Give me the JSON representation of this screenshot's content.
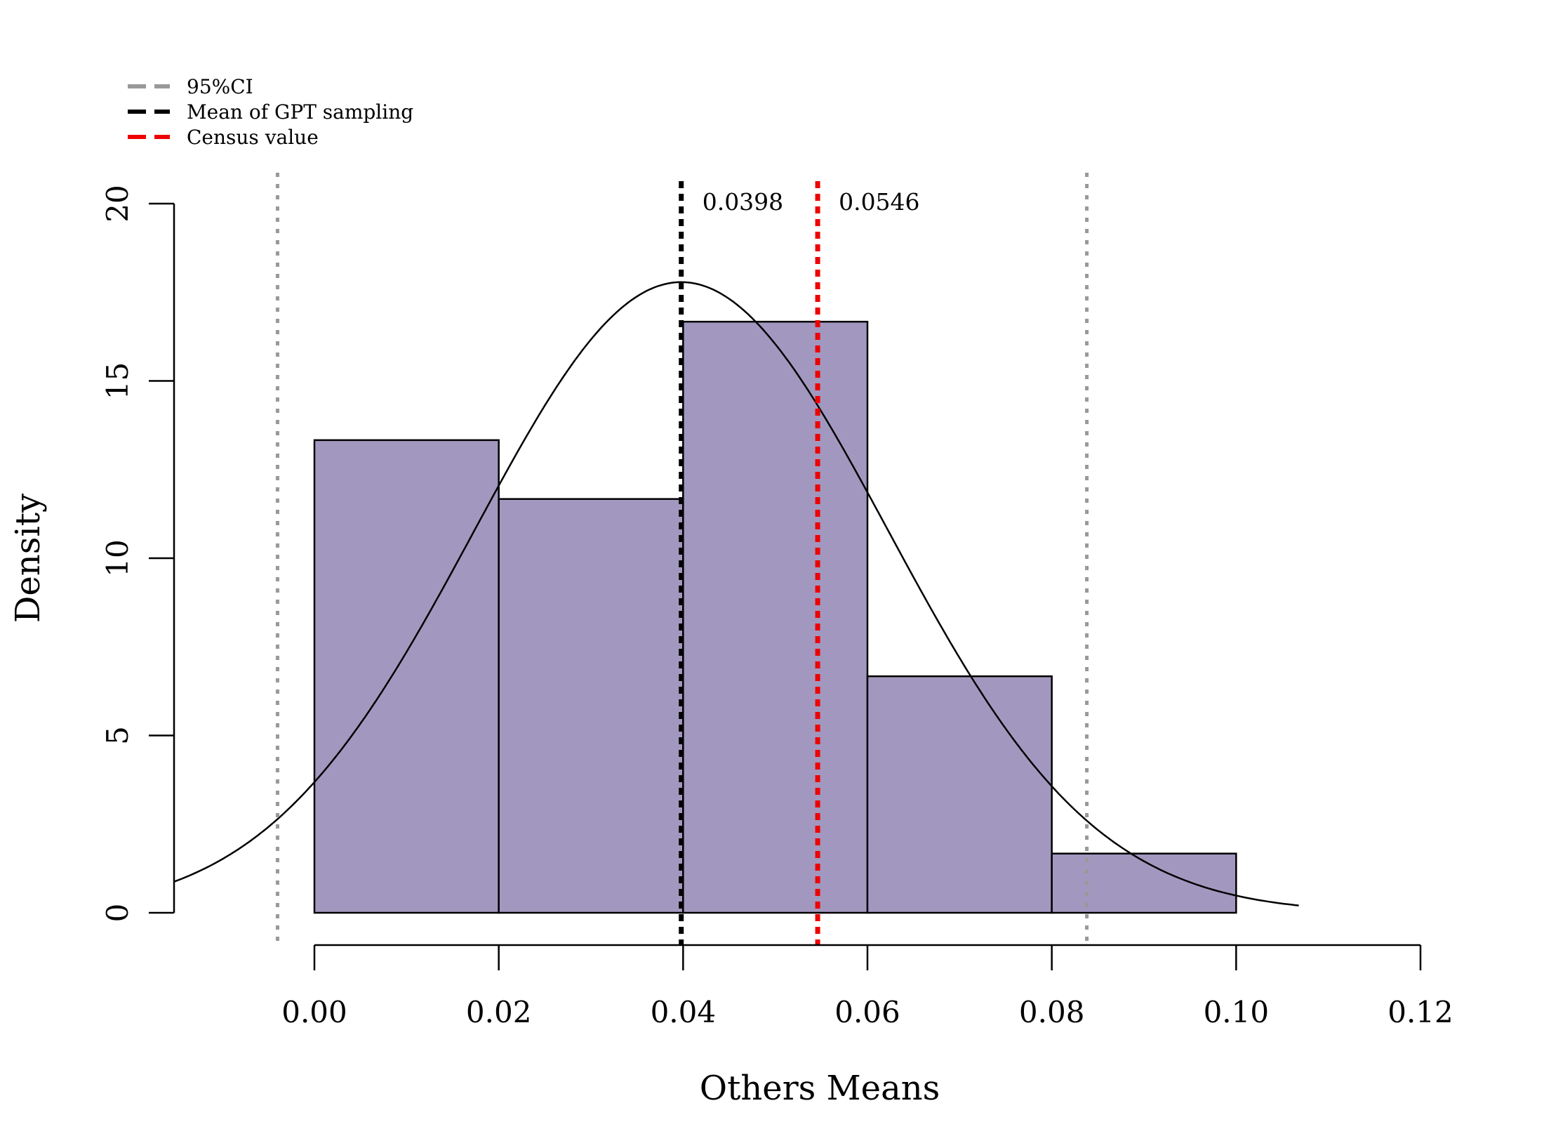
{
  "colors": {
    "bar_fill": "#a298bf",
    "bar_stroke": "#000000",
    "ci_line": "#999999",
    "mean_line": "#000000",
    "census_line": "#ee0000",
    "curve": "#000000"
  },
  "legend": {
    "placement": "top-left",
    "items": [
      {
        "label": "95%CI",
        "color": "#999999"
      },
      {
        "label": "Mean of GPT sampling",
        "color": "#000000"
      },
      {
        "label": "Census value",
        "color": "#ee0000"
      }
    ]
  },
  "chart_data": {
    "type": "bar",
    "title": "",
    "xlabel": "Others Means",
    "ylabel": "Density",
    "grid": false,
    "xlim": [
      -0.0152,
      0.12
    ],
    "ylim": [
      0,
      20
    ],
    "x_ticks": [
      {
        "value": 0.0,
        "label": "0.00"
      },
      {
        "value": 0.02,
        "label": "0.02"
      },
      {
        "value": 0.04,
        "label": "0.04"
      },
      {
        "value": 0.06,
        "label": "0.06"
      },
      {
        "value": 0.08,
        "label": "0.08"
      },
      {
        "value": 0.1,
        "label": "0.10"
      },
      {
        "value": 0.12,
        "label": "0.12"
      }
    ],
    "y_ticks": [
      {
        "value": 0,
        "label": "0"
      },
      {
        "value": 5,
        "label": "5"
      },
      {
        "value": 10,
        "label": "10"
      },
      {
        "value": 15,
        "label": "15"
      },
      {
        "value": 20,
        "label": "20"
      }
    ],
    "bins": [
      {
        "x0": 0.0,
        "x1": 0.02,
        "density": 13.33
      },
      {
        "x0": 0.02,
        "x1": 0.04,
        "density": 11.67
      },
      {
        "x0": 0.04,
        "x1": 0.06,
        "density": 16.67
      },
      {
        "x0": 0.06,
        "x1": 0.08,
        "density": 6.67
      },
      {
        "x0": 0.08,
        "x1": 0.1,
        "density": 1.67
      }
    ],
    "normal_curve": {
      "mean": 0.0398,
      "sd": 0.02243,
      "x_from": -0.0152,
      "x_to": 0.1068
    },
    "vertical_lines": [
      {
        "role": "ci",
        "x": -0.004,
        "color": "#999999"
      },
      {
        "role": "ci",
        "x": 0.0838,
        "color": "#999999"
      },
      {
        "role": "mean",
        "x": 0.0398,
        "color": "#000000",
        "label": "0.0398"
      },
      {
        "role": "census",
        "x": 0.0546,
        "color": "#ee0000",
        "label": "0.0546"
      }
    ]
  }
}
